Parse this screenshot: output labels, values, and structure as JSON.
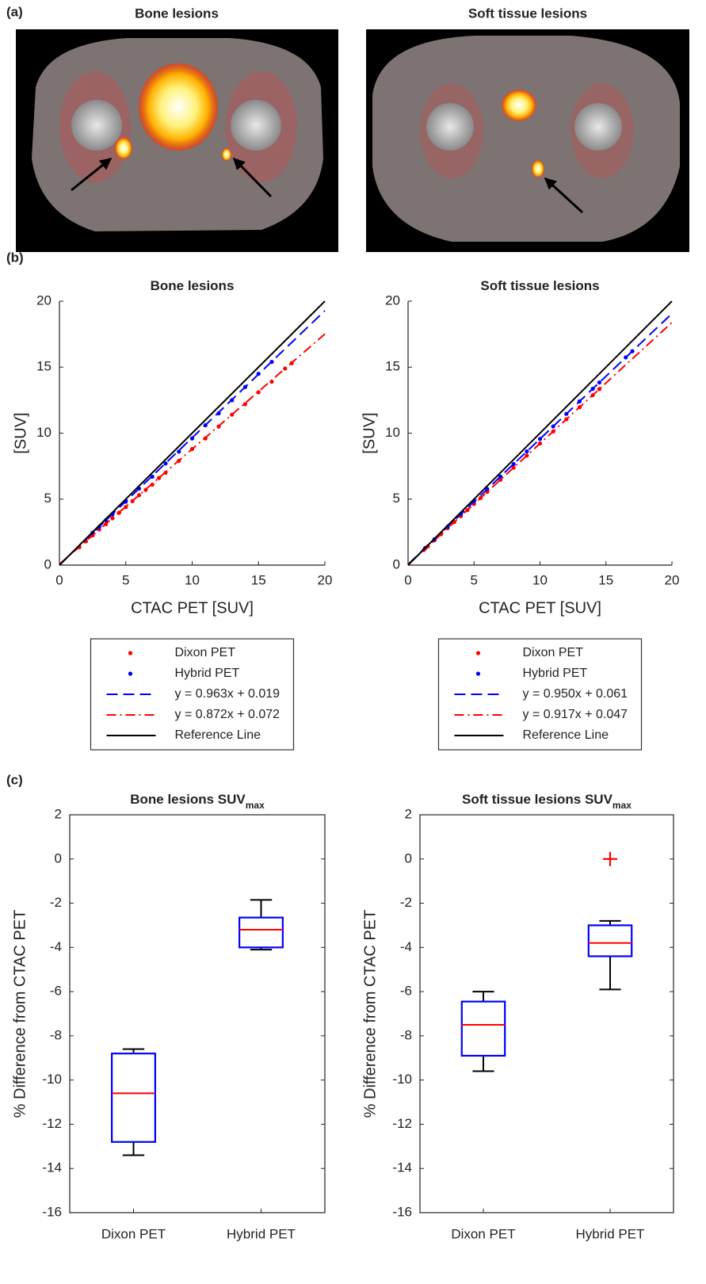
{
  "panels": {
    "a": {
      "label": "(a)",
      "titles": [
        "Bone lesions",
        "Soft tissue lesions"
      ]
    },
    "b": {
      "label": "(b)"
    },
    "c": {
      "label": "(c)"
    }
  },
  "chart_data": [
    {
      "type": "scatter",
      "title": "Bone lesions",
      "x_label": "CTAC PET [SUV]",
      "y_label": "[SUV]",
      "xlim": [
        0,
        20
      ],
      "ylim": [
        0,
        20
      ],
      "xticks": [
        0,
        5,
        10,
        15,
        20
      ],
      "yticks": [
        0,
        5,
        10,
        15,
        20
      ],
      "box": false,
      "legend": "below",
      "series": [
        {
          "name": "Dixon PET",
          "color": "#ff0000",
          "mode": "markers",
          "x": [
            1.5,
            2,
            2.5,
            3,
            3.5,
            4,
            4.5,
            5,
            5.5,
            6,
            6.5,
            7,
            7.5,
            8,
            9,
            10,
            11,
            12,
            13,
            14,
            15,
            16,
            17,
            17.5
          ],
          "values": [
            1.36,
            1.8,
            2.25,
            2.7,
            3.1,
            3.55,
            3.97,
            4.4,
            4.85,
            5.3,
            5.7,
            6.1,
            6.6,
            7.0,
            7.9,
            8.8,
            9.6,
            10.5,
            11.4,
            12.2,
            13.1,
            13.9,
            14.9,
            15.3
          ]
        },
        {
          "name": "Hybrid PET",
          "color": "#0000ff",
          "mode": "markers",
          "x": [
            2.5,
            3,
            3.5,
            4,
            5,
            6,
            7,
            8,
            9,
            10,
            11,
            12,
            13,
            14,
            15,
            16
          ],
          "values": [
            2.45,
            2.9,
            3.4,
            3.85,
            4.8,
            5.8,
            6.7,
            7.7,
            8.6,
            9.6,
            10.6,
            11.5,
            12.5,
            13.5,
            14.5,
            15.4
          ]
        },
        {
          "name": "y = 0.963x + 0.019",
          "color": "#0000ff",
          "mode": "line",
          "style": "dashed",
          "x": [
            0,
            20
          ],
          "values": [
            0.019,
            19.279
          ]
        },
        {
          "name": "y = 0.872x + 0.072",
          "color": "#ff0000",
          "mode": "line",
          "style": "dashdot",
          "x": [
            0,
            20
          ],
          "values": [
            0.072,
            17.512
          ]
        },
        {
          "name": "Reference Line",
          "color": "#000000",
          "mode": "line",
          "style": "solid",
          "x": [
            0,
            20
          ],
          "values": [
            0,
            20
          ]
        }
      ]
    },
    {
      "type": "scatter",
      "title": "Soft tissue lesions",
      "x_label": "CTAC PET [SUV]",
      "y_label": "[SUV]",
      "xlim": [
        0,
        20
      ],
      "ylim": [
        0,
        20
      ],
      "xticks": [
        0,
        5,
        10,
        15,
        20
      ],
      "yticks": [
        0,
        5,
        10,
        15,
        20
      ],
      "box": false,
      "legend": "below",
      "series": [
        {
          "name": "Dixon PET",
          "color": "#ff0000",
          "mode": "markers",
          "x": [
            1.2,
            1.5,
            2,
            2.5,
            3,
            3.5,
            4,
            4.5,
            5,
            5.5,
            6,
            7,
            8,
            9,
            10,
            11,
            12,
            13,
            14,
            14.5
          ],
          "values": [
            1.15,
            1.42,
            1.88,
            2.34,
            2.8,
            3.26,
            3.71,
            4.17,
            4.63,
            5.09,
            5.55,
            6.47,
            7.38,
            8.3,
            9.22,
            10.13,
            11.05,
            11.97,
            12.88,
            13.34
          ]
        },
        {
          "name": "Hybrid PET",
          "color": "#0000ff",
          "mode": "markers",
          "x": [
            1.3,
            2,
            3,
            4,
            5,
            6,
            7,
            8,
            9,
            10,
            11,
            12,
            13,
            14,
            14.5,
            16.5,
            17
          ],
          "values": [
            1.3,
            1.96,
            2.91,
            3.86,
            4.81,
            5.76,
            6.71,
            7.66,
            8.61,
            9.56,
            10.51,
            11.46,
            12.41,
            13.36,
            13.84,
            15.74,
            16.21
          ]
        },
        {
          "name": "y = 0.950x + 0.061",
          "color": "#0000ff",
          "mode": "line",
          "style": "dashed",
          "x": [
            0,
            20
          ],
          "values": [
            0.061,
            19.061
          ]
        },
        {
          "name": "y = 0.917x + 0.047",
          "color": "#ff0000",
          "mode": "line",
          "style": "dashdot",
          "x": [
            0,
            20
          ],
          "values": [
            0.047,
            18.387
          ]
        },
        {
          "name": "Reference Line",
          "color": "#000000",
          "mode": "line",
          "style": "solid",
          "x": [
            0,
            20
          ],
          "values": [
            0,
            20
          ]
        }
      ]
    },
    {
      "type": "box",
      "title": "Bone lesions SUV",
      "title_sub": "max",
      "y_label": "% Difference from CTAC PET",
      "categories": [
        "Dixon PET",
        "Hybrid PET"
      ],
      "ylim": [
        -16,
        2
      ],
      "yticks": [
        -16,
        -14,
        -12,
        -10,
        -8,
        -6,
        -4,
        -2,
        0,
        2
      ],
      "box": true,
      "box_color": "#0000ff",
      "median_color": "#ff0000",
      "whisker_color": "#000000",
      "outlier_color": "#ff0000",
      "boxes": [
        {
          "min": -13.4,
          "q1": -12.8,
          "median": -10.6,
          "q3": -8.8,
          "max": -8.6,
          "outliers": []
        },
        {
          "min": -4.1,
          "q1": -4.0,
          "median": -3.2,
          "q3": -2.65,
          "max": -1.85,
          "outliers": []
        }
      ]
    },
    {
      "type": "box",
      "title": "Soft tissue lesions SUV",
      "title_sub": "max",
      "y_label": "% Difference from CTAC PET",
      "categories": [
        "Dixon PET",
        "Hybrid PET"
      ],
      "ylim": [
        -16,
        2
      ],
      "yticks": [
        -16,
        -14,
        -12,
        -10,
        -8,
        -6,
        -4,
        -2,
        0,
        2
      ],
      "box": true,
      "box_color": "#0000ff",
      "median_color": "#ff0000",
      "whisker_color": "#000000",
      "outlier_color": "#ff0000",
      "boxes": [
        {
          "min": -9.6,
          "q1": -8.9,
          "median": -7.5,
          "q3": -6.45,
          "max": -6.0,
          "outliers": []
        },
        {
          "min": -5.9,
          "q1": -4.4,
          "median": -3.8,
          "q3": -3.0,
          "max": -2.8,
          "outliers": [
            0
          ]
        }
      ]
    }
  ]
}
